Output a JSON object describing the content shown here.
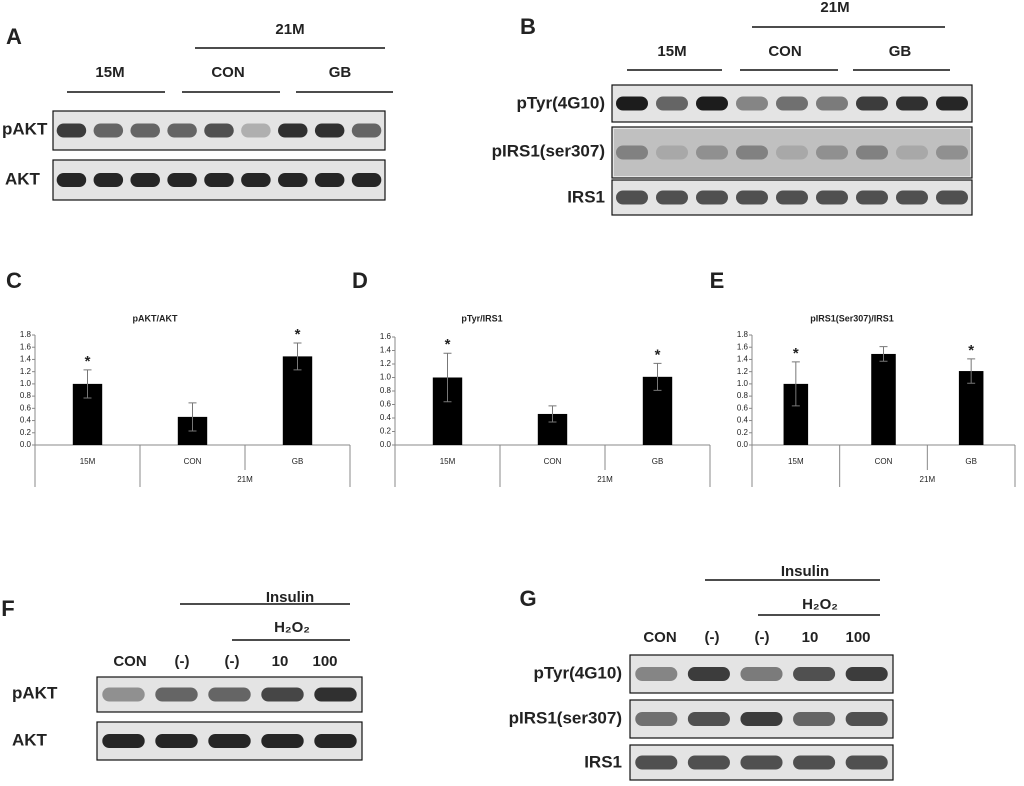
{
  "blots": {
    "A": {
      "letter": "A",
      "group_top": "21M",
      "groups": [
        "15M",
        "CON",
        "GB"
      ],
      "rows": [
        "pAKT",
        "AKT"
      ]
    },
    "B": {
      "letter": "B",
      "group_top": "21M",
      "groups": [
        "15M",
        "CON",
        "GB"
      ],
      "rows": [
        "pTyr(4G10)",
        "pIRS1(ser307)",
        "IRS1"
      ]
    },
    "F": {
      "letter": "F",
      "treatment": "Insulin",
      "subtreatment": "H₂O₂",
      "lanes": [
        "CON",
        "(-)",
        "(-)",
        "10",
        "100"
      ],
      "rows": [
        "pAKT",
        "AKT"
      ]
    },
    "G": {
      "letter": "G",
      "treatment": "Insulin",
      "subtreatment": "H₂O₂",
      "lanes": [
        "CON",
        "(-)",
        "(-)",
        "10",
        "100"
      ],
      "rows": [
        "pTyr(4G10)",
        "pIRS1(ser307)",
        "IRS1"
      ]
    }
  },
  "chart_data": [
    {
      "type": "bar",
      "panel": "C",
      "title": "pAKT/AKT",
      "categories": [
        "15M",
        "CON",
        "GB"
      ],
      "group_label": "21M",
      "values": [
        1.0,
        0.46,
        1.45
      ],
      "errors": [
        0.23,
        0.23,
        0.22
      ],
      "significance": [
        "*",
        null,
        "*"
      ],
      "color": "#000000",
      "ylim": [
        0,
        1.8
      ],
      "yticks": [
        {
          "value": 0,
          "label": "0.0"
        },
        0.2,
        0.4,
        0.6,
        0.8,
        {
          "value": 1,
          "label": "1.0"
        },
        1.2,
        1.4,
        1.6,
        1.8
      ]
    },
    {
      "type": "bar",
      "panel": "D",
      "title": "pTyr/IRS1",
      "categories": [
        "15M",
        "CON",
        "GB"
      ],
      "group_label": "21M",
      "values": [
        1.0,
        0.46,
        1.01
      ],
      "errors": [
        0.36,
        0.12,
        0.2
      ],
      "significance": [
        "*",
        null,
        "*"
      ],
      "color": "#000000",
      "ylim": [
        0,
        1.6
      ],
      "yticks": [
        {
          "value": 0,
          "label": "0.0"
        },
        0.2,
        0.4,
        0.6,
        0.8,
        {
          "value": 1,
          "label": "1.0"
        },
        1.2,
        1.4,
        1.6
      ]
    },
    {
      "type": "bar",
      "panel": "E",
      "title": "pIRS1(Ser307)/IRS1",
      "categories": [
        "15M",
        "CON",
        "GB"
      ],
      "group_label": "21M",
      "values": [
        1.0,
        1.49,
        1.21
      ],
      "errors": [
        0.36,
        0.12,
        0.2
      ],
      "significance": [
        "*",
        null,
        "*"
      ],
      "color": "#000000",
      "ylim": [
        0,
        1.8
      ],
      "yticks": [
        {
          "value": 0,
          "label": "0.0"
        },
        0.2,
        0.4,
        0.6,
        0.8,
        {
          "value": 1,
          "label": "1.0"
        },
        1.2,
        1.4,
        1.6,
        1.8
      ]
    }
  ]
}
